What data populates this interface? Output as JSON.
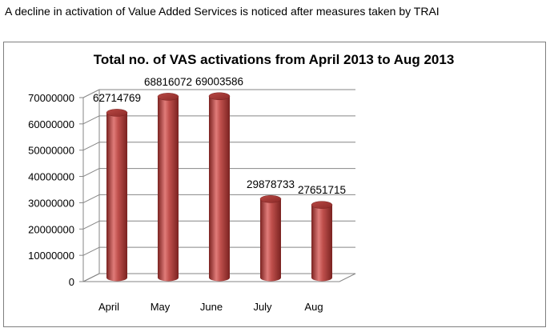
{
  "caption": "A decline in activation of Value Added Services is noticed after measures taken by TRAI",
  "colors": {
    "bar": "#c0504d",
    "bar_dark": "#8c2a28",
    "bar_light": "#e07c79",
    "grid": "#868686",
    "frame": "#7f7f7f"
  },
  "chart_data": {
    "type": "bar",
    "title": "Total no. of VAS activations from April 2013 to Aug 2013",
    "categories": [
      "April",
      "May",
      "June",
      "July",
      "Aug"
    ],
    "values": [
      62714769,
      68816072,
      69003586,
      29878733,
      27651715
    ],
    "data_labels": [
      "62714769",
      "68816072",
      "69003586",
      "29878733",
      "27651715"
    ],
    "y_ticks": [
      "0",
      "10000000",
      "20000000",
      "30000000",
      "40000000",
      "50000000",
      "60000000",
      "70000000"
    ],
    "ylim": [
      0,
      70000000
    ],
    "style": "3d-cylinder",
    "grid": true,
    "legend": "none"
  }
}
